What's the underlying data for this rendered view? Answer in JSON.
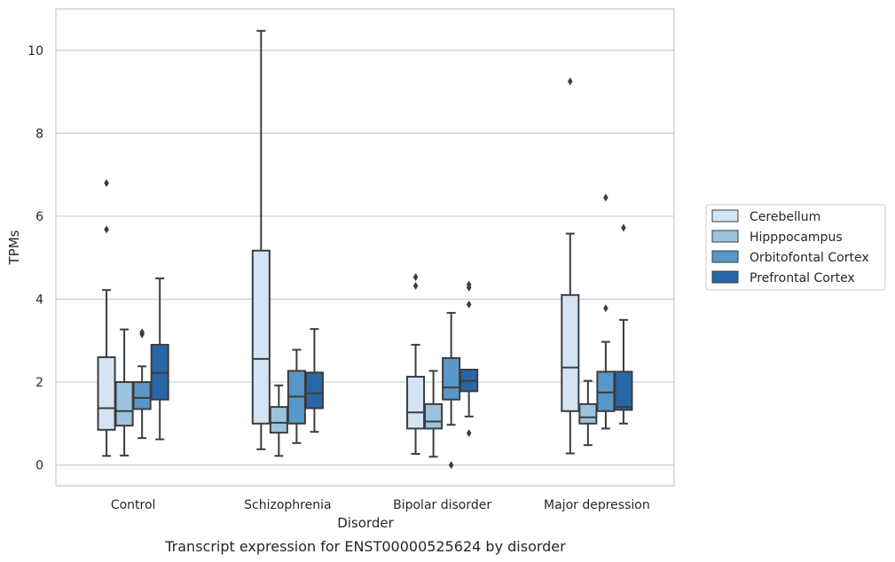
{
  "caption": "Transcript expression for ENST00000525624 by disorder",
  "chart_data": {
    "type": "box",
    "title": "",
    "xlabel": "Disorder",
    "ylabel": "TPMs",
    "ylim": [
      -0.5,
      11
    ],
    "yticks": [
      0,
      2,
      4,
      6,
      8,
      10
    ],
    "grid": "horizontal",
    "legend_position": "right",
    "categories": [
      "Control",
      "Schizophrenia",
      "Bipolar disorder",
      "Major depression"
    ],
    "series": [
      {
        "name": "Cerebellum",
        "color": "#d4e4f3",
        "boxes": [
          {
            "whisker_low": 0.22,
            "q1": 0.85,
            "median": 1.37,
            "q3": 2.6,
            "whisker_high": 4.22,
            "outliers": [
              5.68,
              6.8
            ]
          },
          {
            "whisker_low": 0.38,
            "q1": 1.0,
            "median": 2.56,
            "q3": 5.17,
            "whisker_high": 10.47,
            "outliers": []
          },
          {
            "whisker_low": 0.27,
            "q1": 0.88,
            "median": 1.27,
            "q3": 2.13,
            "whisker_high": 2.9,
            "outliers": [
              4.32,
              4.53
            ]
          },
          {
            "whisker_low": 0.28,
            "q1": 1.3,
            "median": 2.35,
            "q3": 4.1,
            "whisker_high": 5.58,
            "outliers": [
              9.25
            ]
          }
        ]
      },
      {
        "name": "Hipppocampus",
        "color": "#9cc3de",
        "boxes": [
          {
            "whisker_low": 0.23,
            "q1": 0.95,
            "median": 1.3,
            "q3": 2.0,
            "whisker_high": 3.27,
            "outliers": []
          },
          {
            "whisker_low": 0.22,
            "q1": 0.78,
            "median": 1.02,
            "q3": 1.4,
            "whisker_high": 1.92,
            "outliers": []
          },
          {
            "whisker_low": 0.2,
            "q1": 0.88,
            "median": 1.05,
            "q3": 1.47,
            "whisker_high": 2.27,
            "outliers": []
          },
          {
            "whisker_low": 0.48,
            "q1": 1.0,
            "median": 1.15,
            "q3": 1.47,
            "whisker_high": 2.03,
            "outliers": []
          }
        ]
      },
      {
        "name": "Orbitofontal Cortex",
        "color": "#5897c7",
        "boxes": [
          {
            "whisker_low": 0.65,
            "q1": 1.35,
            "median": 1.62,
            "q3": 2.0,
            "whisker_high": 2.38,
            "outliers": [
              3.15,
              3.2
            ]
          },
          {
            "whisker_low": 0.53,
            "q1": 1.0,
            "median": 1.65,
            "q3": 2.27,
            "whisker_high": 2.78,
            "outliers": []
          },
          {
            "whisker_low": 0.97,
            "q1": 1.58,
            "median": 1.87,
            "q3": 2.58,
            "whisker_high": 3.67,
            "outliers": [
              0.0
            ]
          },
          {
            "whisker_low": 0.88,
            "q1": 1.3,
            "median": 1.75,
            "q3": 2.25,
            "whisker_high": 2.97,
            "outliers": [
              3.78,
              6.45
            ]
          }
        ]
      },
      {
        "name": "Prefrontal Cortex",
        "color": "#2866a8",
        "boxes": [
          {
            "whisker_low": 0.62,
            "q1": 1.58,
            "median": 2.22,
            "q3": 2.9,
            "whisker_high": 4.5,
            "outliers": []
          },
          {
            "whisker_low": 0.8,
            "q1": 1.37,
            "median": 1.73,
            "q3": 2.23,
            "whisker_high": 3.28,
            "outliers": []
          },
          {
            "whisker_low": 1.17,
            "q1": 1.78,
            "median": 2.03,
            "q3": 2.3,
            "whisker_high": 2.3,
            "outliers": [
              0.77,
              3.87,
              4.28,
              4.35
            ]
          },
          {
            "whisker_low": 1.0,
            "q1": 1.33,
            "median": 1.4,
            "q3": 2.25,
            "whisker_high": 3.5,
            "outliers": [
              5.72
            ]
          }
        ]
      }
    ]
  }
}
